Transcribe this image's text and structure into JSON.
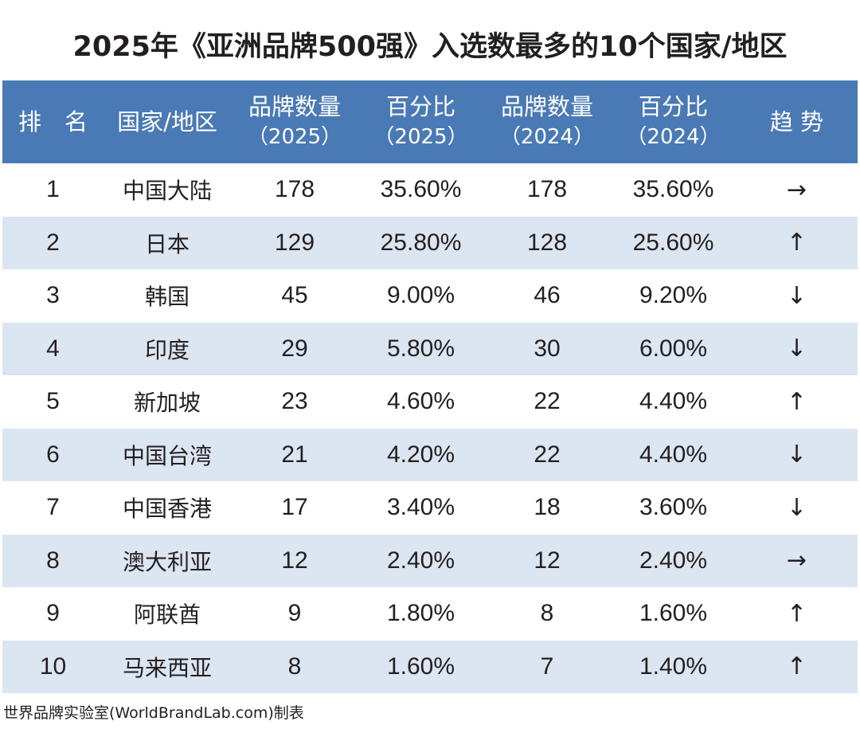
{
  "title": "2025年《亚洲品牌500强》入选数最多的10个国家/地区",
  "headers": [
    {
      "line1": "排　名",
      "line2": ""
    },
    {
      "line1": "国家/地区",
      "line2": ""
    },
    {
      "line1": "品牌数量",
      "line2": "（2025）"
    },
    {
      "line1": "百分比",
      "line2": "（2025）"
    },
    {
      "line1": "品牌数量",
      "line2": "（2024）"
    },
    {
      "line1": "百分比",
      "line2": "（2024）"
    },
    {
      "line1": "趋 势",
      "line2": ""
    }
  ],
  "rows": [
    {
      "rank": "1",
      "region": "中国大陆",
      "count_2025": "178",
      "pct_2025": "35.60%",
      "count_2024": "178",
      "pct_2024": "35.60%",
      "trend": "→"
    },
    {
      "rank": "2",
      "region": "日本",
      "count_2025": "129",
      "pct_2025": "25.80%",
      "count_2024": "128",
      "pct_2024": "25.60%",
      "trend": "↑"
    },
    {
      "rank": "3",
      "region": "韩国",
      "count_2025": "45",
      "pct_2025": "9.00%",
      "count_2024": "46",
      "pct_2024": "9.20%",
      "trend": "↓"
    },
    {
      "rank": "4",
      "region": "印度",
      "count_2025": "29",
      "pct_2025": "5.80%",
      "count_2024": "30",
      "pct_2024": "6.00%",
      "trend": "↓"
    },
    {
      "rank": "5",
      "region": "新加坡",
      "count_2025": "23",
      "pct_2025": "4.60%",
      "count_2024": "22",
      "pct_2024": "4.40%",
      "trend": "↑"
    },
    {
      "rank": "6",
      "region": "中国台湾",
      "count_2025": "21",
      "pct_2025": "4.20%",
      "count_2024": "22",
      "pct_2024": "4.40%",
      "trend": "↓"
    },
    {
      "rank": "7",
      "region": "中国香港",
      "count_2025": "17",
      "pct_2025": "3.40%",
      "count_2024": "18",
      "pct_2024": "3.60%",
      "trend": "↓"
    },
    {
      "rank": "8",
      "region": "澳大利亚",
      "count_2025": "12",
      "pct_2025": "2.40%",
      "count_2024": "12",
      "pct_2024": "2.40%",
      "trend": "→"
    },
    {
      "rank": "9",
      "region": "阿联酋",
      "count_2025": "9",
      "pct_2025": "1.80%",
      "count_2024": "8",
      "pct_2024": "1.60%",
      "trend": "↑"
    },
    {
      "rank": "10",
      "region": "马来西亚",
      "count_2025": "8",
      "pct_2025": "1.60%",
      "count_2024": "7",
      "pct_2024": "1.40%",
      "trend": "↑"
    }
  ],
  "footer": "世界品牌实验室(WorldBrandLab.com)制表",
  "colors": {
    "header_bg": "#4a7ab5",
    "alt_row_bg": "#dce5f2",
    "text": "#231f20"
  }
}
